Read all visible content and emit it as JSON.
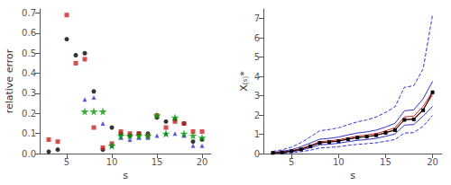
{
  "chart_data": [
    {
      "type": "scatter",
      "x": [
        3,
        4,
        5,
        6,
        7,
        8,
        9,
        10,
        11,
        12,
        13,
        14,
        15,
        16,
        17,
        18,
        19,
        20
      ],
      "series": [
        {
          "color": "#000000",
          "marker": "circle",
          "values": [
            0.01,
            0.02,
            0.57,
            0.49,
            0.5,
            0.31,
            0.02,
            0.13,
            0.1,
            0.09,
            0.1,
            0.1,
            0.18,
            0.16,
            0.17,
            0.15,
            0.06,
            0.07
          ]
        },
        {
          "color": "#cc2222",
          "marker": "square",
          "values": [
            0.07,
            0.06,
            0.69,
            0.45,
            0.47,
            0.13,
            0.03,
            0.05,
            0.11,
            0.1,
            0.1,
            0.09,
            0.19,
            0.13,
            0.16,
            0.15,
            0.11,
            0.11
          ]
        },
        {
          "color": "#3333cc",
          "marker": "triangle",
          "values": [
            null,
            null,
            null,
            null,
            0.27,
            0.28,
            0.15,
            0.04,
            0.08,
            0.07,
            0.08,
            0.08,
            0.09,
            0.1,
            0.1,
            0.09,
            0.04,
            0.04
          ]
        },
        {
          "color": "#009900",
          "marker": "star",
          "values": [
            null,
            null,
            null,
            null,
            0.21,
            0.21,
            0.21,
            0.04,
            0.09,
            0.09,
            0.09,
            0.09,
            0.19,
            0.1,
            0.18,
            0.1,
            0.09,
            0.08
          ]
        }
      ],
      "xlabel": "s",
      "ylabel": "relative error",
      "xlim": [
        2,
        21
      ],
      "ylim": [
        0.0,
        0.72
      ],
      "xticks": [
        5,
        10,
        15,
        20
      ],
      "yticks": [
        {
          "value": 0.0,
          "label": "0.0"
        },
        0.1,
        0.2,
        0.3,
        0.4,
        0.5,
        0.6,
        0.7
      ],
      "grid": false
    },
    {
      "type": "line",
      "x": [
        3,
        4,
        5,
        6,
        7,
        8,
        9,
        10,
        11,
        12,
        13,
        14,
        15,
        16,
        17,
        18,
        19,
        20
      ],
      "series": [
        {
          "color": "#3333cc",
          "line_style": "dashed",
          "values": [
            0.01,
            0.02,
            0.05,
            0.1,
            0.18,
            0.3,
            0.32,
            0.36,
            0.43,
            0.48,
            0.52,
            0.56,
            0.64,
            0.73,
            1.07,
            1.09,
            1.42,
            1.98
          ]
        },
        {
          "color": "#3333cc",
          "line_style": "dashed",
          "values": [
            0.12,
            0.2,
            0.34,
            0.57,
            0.87,
            1.19,
            1.25,
            1.34,
            1.5,
            1.65,
            1.75,
            1.9,
            2.14,
            2.43,
            3.44,
            3.52,
            4.4,
            7.2
          ]
        },
        {
          "color": "#3333cc",
          "line_style": "solid",
          "values": [
            0.03,
            0.06,
            0.1,
            0.18,
            0.3,
            0.46,
            0.49,
            0.54,
            0.62,
            0.69,
            0.73,
            0.79,
            0.9,
            1.02,
            1.48,
            1.51,
            1.95,
            2.45
          ]
        },
        {
          "color": "#3333cc",
          "line_style": "solid",
          "values": [
            0.07,
            0.12,
            0.21,
            0.36,
            0.55,
            0.75,
            0.79,
            0.86,
            0.97,
            1.07,
            1.13,
            1.22,
            1.38,
            1.57,
            2.22,
            2.27,
            2.85,
            3.75
          ]
        },
        {
          "color": "#cc2222",
          "line_style": "solid",
          "values": [
            0.04,
            0.08,
            0.14,
            0.24,
            0.39,
            0.57,
            0.61,
            0.66,
            0.76,
            0.84,
            0.89,
            0.96,
            1.09,
            1.24,
            1.77,
            1.81,
            2.3,
            3.05
          ]
        },
        {
          "color": "#cc2222",
          "line_style": "solid",
          "values": [
            0.05,
            0.09,
            0.16,
            0.27,
            0.43,
            0.62,
            0.66,
            0.72,
            0.82,
            0.91,
            0.97,
            1.04,
            1.18,
            1.34,
            1.9,
            1.95,
            2.45,
            3.22
          ]
        },
        {
          "color": "#000000",
          "line_style": "solid",
          "marker": "square",
          "values": [
            0.04,
            0.07,
            0.13,
            0.22,
            0.38,
            0.56,
            0.6,
            0.65,
            0.75,
            0.83,
            0.88,
            0.95,
            1.08,
            1.22,
            1.75,
            1.78,
            2.25,
            3.18
          ]
        }
      ],
      "xlabel": "s",
      "ylabel": "X₍ₛ₎*",
      "xlim": [
        2,
        21
      ],
      "ylim": [
        0,
        7.5
      ],
      "xticks": [
        5,
        10,
        15,
        20
      ],
      "yticks": [
        0,
        1,
        2,
        3,
        4,
        5,
        6,
        7
      ],
      "grid": false
    }
  ]
}
